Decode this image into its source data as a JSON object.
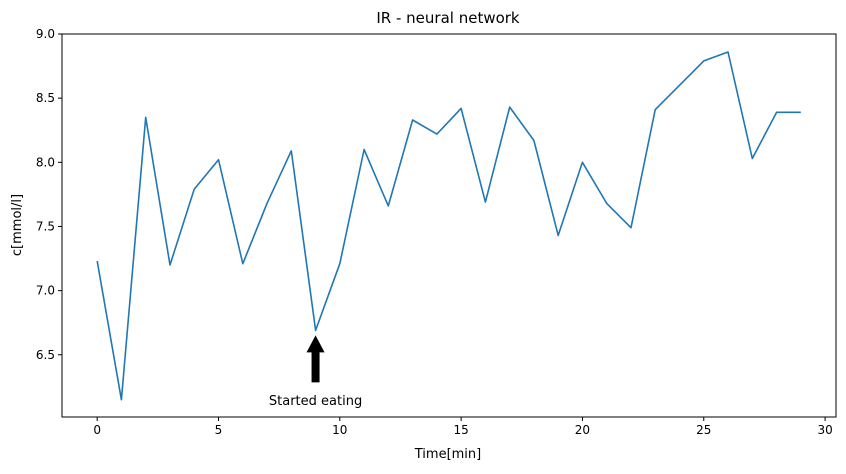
{
  "chart_data": {
    "type": "line",
    "title": "IR - neural network",
    "xlabel": "Time[min]",
    "ylabel": "c[mmol/l]",
    "xlim": [
      -1.45,
      30.45
    ],
    "ylim": [
      6.015,
      9.0
    ],
    "xticks": [
      0,
      5,
      10,
      15,
      20,
      25,
      30
    ],
    "xtick_labels": [
      "0",
      "5",
      "10",
      "15",
      "20",
      "25",
      "30"
    ],
    "yticks": [
      6.5,
      7.0,
      7.5,
      8.0,
      8.5,
      9.0
    ],
    "ytick_labels": [
      "6.5",
      "7.0",
      "7.5",
      "8.0",
      "8.5",
      "9.0"
    ],
    "grid": false,
    "series": [
      {
        "name": "c",
        "color": "#1f77b4",
        "x": [
          0,
          1,
          2,
          3,
          4,
          5,
          6,
          7,
          8,
          9,
          10,
          11,
          12,
          13,
          14,
          15,
          16,
          17,
          18,
          19,
          20,
          21,
          22,
          23,
          24,
          25,
          26,
          27,
          28,
          29
        ],
        "y": [
          7.23,
          6.15,
          8.35,
          7.2,
          7.79,
          8.02,
          7.21,
          7.68,
          8.09,
          6.69,
          7.21,
          8.1,
          7.66,
          8.33,
          8.22,
          8.42,
          7.69,
          8.43,
          8.17,
          7.43,
          8.0,
          7.68,
          7.49,
          8.41,
          8.6,
          8.79,
          8.86,
          8.03,
          8.39,
          8.39
        ]
      }
    ],
    "annotations": [
      {
        "text": "Started eating",
        "arrow_tip": [
          9,
          6.69
        ],
        "text_position": [
          9,
          6.14
        ]
      }
    ]
  }
}
